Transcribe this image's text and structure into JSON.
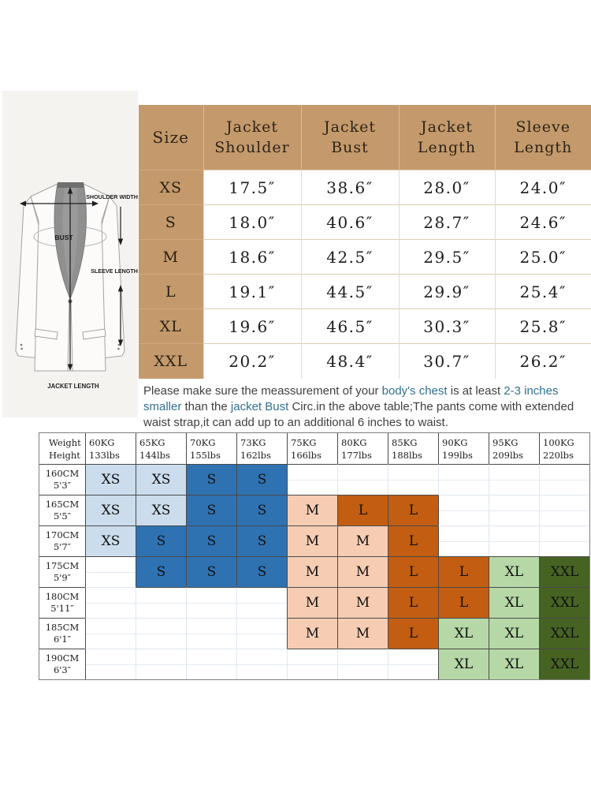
{
  "colors": {
    "tan_header": "#c49a6c",
    "blue_light": "#cbdded",
    "blue": "#2f72b2",
    "peach": "#f6cdb3",
    "orange": "#c25d11",
    "green_light": "#b6d8a7",
    "green_dark": "#466322",
    "note_highlight": "#31708f"
  },
  "diagram": {
    "labels": {
      "shoulder_width": "SHOULDER WIDTH",
      "bust": "BUST",
      "sleeve_length": "SLEEVE LENGTH",
      "jacket_length": "JACKET LENGTH"
    }
  },
  "size_table": {
    "columns": [
      [
        "Size"
      ],
      [
        "Jacket",
        "Shoulder"
      ],
      [
        "Jacket",
        "Bust"
      ],
      [
        "Jacket",
        "Length"
      ],
      [
        "Sleeve",
        "Length"
      ]
    ],
    "rows": [
      {
        "size": "XS",
        "values": [
          "17.5″",
          "38.6″",
          "28.0″",
          "24.0″"
        ]
      },
      {
        "size": "S",
        "values": [
          "18.0″",
          "40.6″",
          "28.7″",
          "24.6″"
        ]
      },
      {
        "size": "M",
        "values": [
          "18.6″",
          "42.5″",
          "29.5″",
          "25.0″"
        ]
      },
      {
        "size": "L",
        "values": [
          "19.1″",
          "44.5″",
          "29.9″",
          "25.4″"
        ]
      },
      {
        "size": "XL",
        "values": [
          "19.6″",
          "46.5″",
          "30.3″",
          "25.8″"
        ]
      },
      {
        "size": "XXL",
        "values": [
          "20.2″",
          "48.4″",
          "30.7″",
          "26.2″"
        ]
      }
    ]
  },
  "note": {
    "lines": [
      [
        {
          "t": "Please make sure the meassurement of your ",
          "h": false
        },
        {
          "t": "body's chest",
          "h": true
        },
        {
          "t": " is at least ",
          "h": false
        },
        {
          "t": "2-3 inches",
          "h": true
        }
      ],
      [
        {
          "t": "smaller",
          "h": true
        },
        {
          "t": " than the ",
          "h": false
        },
        {
          "t": "jacket Bust",
          "h": true
        },
        {
          "t": " Circ.in the above table;The pants come with extended",
          "h": false
        }
      ],
      [
        {
          "t": "waist strap,it can add up to an additional 6 inches to waist.",
          "h": false
        }
      ]
    ]
  },
  "fit_matrix": {
    "corner": [
      "Weight",
      "Height"
    ],
    "weights": [
      [
        "60KG",
        "133lbs"
      ],
      [
        "65KG",
        "144lbs"
      ],
      [
        "70KG",
        "155lbs"
      ],
      [
        "73KG",
        "162lbs"
      ],
      [
        "75KG",
        "166lbs"
      ],
      [
        "80KG",
        "177lbs"
      ],
      [
        "85KG",
        "188lbs"
      ],
      [
        "90KG",
        "199lbs"
      ],
      [
        "95KG",
        "209lbs"
      ],
      [
        "100KG",
        "220lbs"
      ]
    ],
    "rows": [
      {
        "height": [
          "160CM",
          "5'3″"
        ],
        "cells": [
          {
            "size": "XS",
            "color": "blue_light"
          },
          {
            "size": "XS",
            "color": "blue_light"
          },
          {
            "size": "S",
            "color": "blue"
          },
          {
            "size": "S",
            "color": "blue"
          },
          null,
          null,
          null,
          null,
          null,
          null
        ]
      },
      {
        "height": [
          "165CM",
          "5'5″"
        ],
        "cells": [
          {
            "size": "XS",
            "color": "blue_light"
          },
          {
            "size": "XS",
            "color": "blue_light"
          },
          {
            "size": "S",
            "color": "blue"
          },
          {
            "size": "S",
            "color": "blue"
          },
          {
            "size": "M",
            "color": "peach"
          },
          {
            "size": "L",
            "color": "orange"
          },
          {
            "size": "L",
            "color": "orange"
          },
          null,
          null,
          null
        ]
      },
      {
        "height": [
          "170CM",
          "5'7″"
        ],
        "cells": [
          {
            "size": "XS",
            "color": "blue_light"
          },
          {
            "size": "S",
            "color": "blue"
          },
          {
            "size": "S",
            "color": "blue"
          },
          {
            "size": "S",
            "color": "blue"
          },
          {
            "size": "M",
            "color": "peach"
          },
          {
            "size": "M",
            "color": "peach"
          },
          {
            "size": "L",
            "color": "orange"
          },
          null,
          null,
          null
        ]
      },
      {
        "height": [
          "175CM",
          "5'9″"
        ],
        "cells": [
          null,
          {
            "size": "S",
            "color": "blue"
          },
          {
            "size": "S",
            "color": "blue"
          },
          {
            "size": "S",
            "color": "blue"
          },
          {
            "size": "M",
            "color": "peach"
          },
          {
            "size": "M",
            "color": "peach"
          },
          {
            "size": "L",
            "color": "orange"
          },
          {
            "size": "L",
            "color": "orange"
          },
          {
            "size": "XL",
            "color": "green_light"
          },
          {
            "size": "XXL",
            "color": "green_dark"
          }
        ]
      },
      {
        "height": [
          "180CM",
          "5'11″"
        ],
        "cells": [
          null,
          null,
          null,
          null,
          {
            "size": "M",
            "color": "peach"
          },
          {
            "size": "M",
            "color": "peach"
          },
          {
            "size": "L",
            "color": "orange"
          },
          {
            "size": "L",
            "color": "orange"
          },
          {
            "size": "XL",
            "color": "green_light"
          },
          {
            "size": "XXL",
            "color": "green_dark"
          }
        ]
      },
      {
        "height": [
          "185CM",
          "6'1″"
        ],
        "cells": [
          null,
          null,
          null,
          null,
          {
            "size": "M",
            "color": "peach"
          },
          {
            "size": "M",
            "color": "peach"
          },
          {
            "size": "L",
            "color": "orange"
          },
          {
            "size": "XL",
            "color": "green_light"
          },
          {
            "size": "XL",
            "color": "green_light"
          },
          {
            "size": "XXL",
            "color": "green_dark"
          }
        ]
      },
      {
        "height": [
          "190CM",
          "6'3″"
        ],
        "cells": [
          null,
          null,
          null,
          null,
          null,
          null,
          null,
          {
            "size": "XL",
            "color": "green_light"
          },
          {
            "size": "XL",
            "color": "green_light"
          },
          {
            "size": "XXL",
            "color": "green_dark"
          }
        ]
      }
    ]
  }
}
